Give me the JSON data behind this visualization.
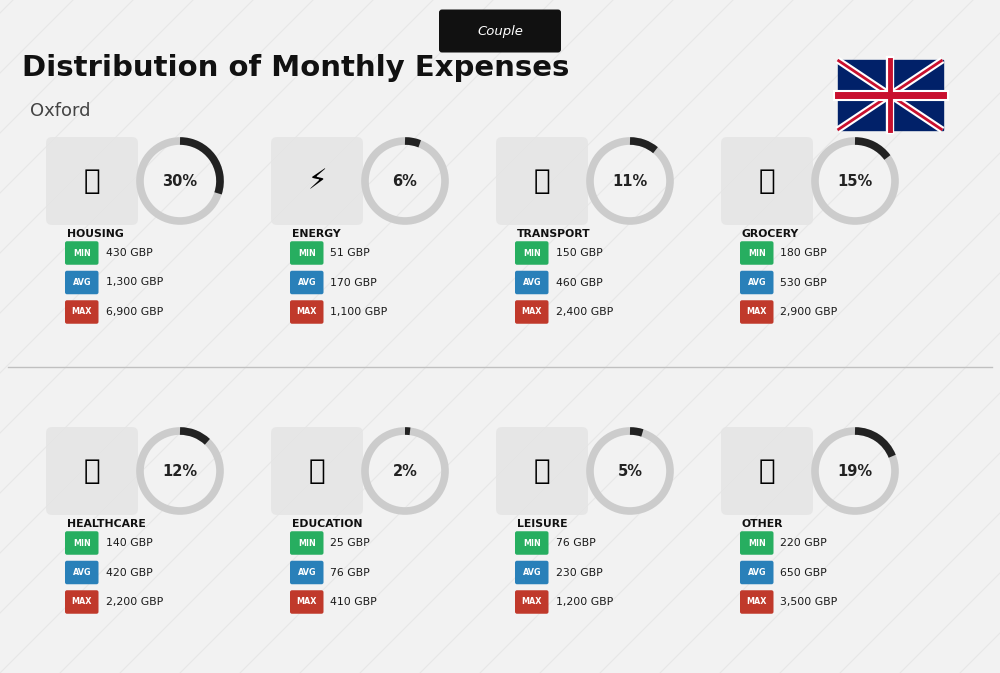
{
  "title": "Distribution of Monthly Expenses",
  "subtitle": "Oxford",
  "tag": "Couple",
  "bg_color": "#f2f2f2",
  "categories": [
    {
      "name": "HOUSING",
      "pct": 30,
      "min_val": "430 GBP",
      "avg_val": "1,300 GBP",
      "max_val": "6,900 GBP",
      "col": 0,
      "row": 0
    },
    {
      "name": "ENERGY",
      "pct": 6,
      "min_val": "51 GBP",
      "avg_val": "170 GBP",
      "max_val": "1,100 GBP",
      "col": 1,
      "row": 0
    },
    {
      "name": "TRANSPORT",
      "pct": 11,
      "min_val": "150 GBP",
      "avg_val": "460 GBP",
      "max_val": "2,400 GBP",
      "col": 2,
      "row": 0
    },
    {
      "name": "GROCERY",
      "pct": 15,
      "min_val": "180 GBP",
      "avg_val": "530 GBP",
      "max_val": "2,900 GBP",
      "col": 3,
      "row": 0
    },
    {
      "name": "HEALTHCARE",
      "pct": 12,
      "min_val": "140 GBP",
      "avg_val": "420 GBP",
      "max_val": "2,200 GBP",
      "col": 0,
      "row": 1
    },
    {
      "name": "EDUCATION",
      "pct": 2,
      "min_val": "25 GBP",
      "avg_val": "76 GBP",
      "max_val": "410 GBP",
      "col": 1,
      "row": 1
    },
    {
      "name": "LEISURE",
      "pct": 5,
      "min_val": "76 GBP",
      "avg_val": "230 GBP",
      "max_val": "1,200 GBP",
      "col": 2,
      "row": 1
    },
    {
      "name": "OTHER",
      "pct": 19,
      "min_val": "220 GBP",
      "avg_val": "650 GBP",
      "max_val": "3,500 GBP",
      "col": 3,
      "row": 1
    }
  ],
  "min_color": "#27ae60",
  "avg_color": "#2980b9",
  "max_color": "#c0392b",
  "label_color": "#ffffff",
  "title_color": "#111111",
  "subtitle_color": "#444444",
  "arc_color": "#222222",
  "arc_bg_color": "#cccccc",
  "tag_bg": "#111111",
  "tag_color": "#ffffff"
}
